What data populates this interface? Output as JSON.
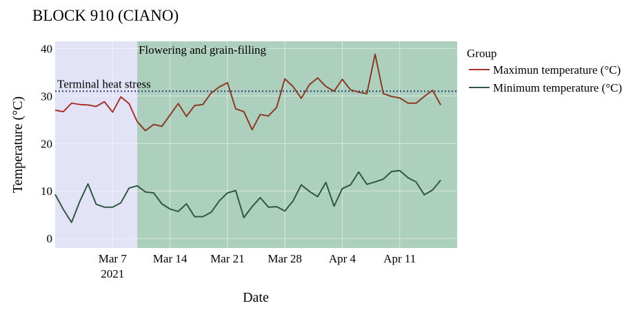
{
  "chart_data": {
    "type": "line",
    "title": "BLOCK 910 (CIANO)",
    "xlabel": "Date",
    "ylabel": "Temperature (°C)",
    "x_start": "2021-02-28",
    "xlim": [
      "2021-02-28",
      "2021-04-18"
    ],
    "ylim": [
      -2,
      41.5
    ],
    "yticks": [
      0,
      10,
      20,
      30,
      40
    ],
    "xticks": [
      {
        "date": "2021-03-07",
        "label": "Mar 7",
        "sublabel": "2021"
      },
      {
        "date": "2021-03-14",
        "label": "Mar 14",
        "sublabel": ""
      },
      {
        "date": "2021-03-21",
        "label": "Mar 21",
        "sublabel": ""
      },
      {
        "date": "2021-03-28",
        "label": "Mar 28",
        "sublabel": ""
      },
      {
        "date": "2021-04-04",
        "label": "Apr 4",
        "sublabel": ""
      },
      {
        "date": "2021-04-11",
        "label": "Apr 11",
        "sublabel": ""
      }
    ],
    "grid": true,
    "legend": {
      "title": "Group",
      "position": "right"
    },
    "regions": [
      {
        "from": "2021-02-28",
        "to": "2021-03-10",
        "color": "#e3e3f7",
        "label": ""
      },
      {
        "from": "2021-03-10",
        "to": "2021-04-18",
        "color": "#adcfbd",
        "label": "Flowering and grain-filling"
      }
    ],
    "hline": {
      "y": 31,
      "label": "Terminal heat stress",
      "color": "#2b3a67",
      "style": "dotted"
    },
    "series": [
      {
        "name": "Maximun temperature (°C)",
        "color": "#a8302a",
        "segment_colors": [
          {
            "from": "2021-03-10",
            "color": "#8a3a20"
          }
        ],
        "values": [
          27.0,
          26.7,
          28.5,
          28.2,
          28.1,
          27.8,
          28.8,
          26.6,
          29.8,
          28.4,
          24.6,
          22.7,
          24.0,
          23.6,
          26.0,
          28.4,
          25.7,
          28.0,
          28.2,
          30.6,
          31.9,
          32.8,
          27.3,
          26.7,
          22.9,
          26.1,
          25.8,
          27.6,
          33.6,
          32.0,
          29.5,
          32.4,
          33.8,
          32.0,
          31.0,
          33.5,
          31.3,
          30.8,
          30.5,
          38.8,
          30.5,
          29.9,
          29.6,
          28.5,
          28.5,
          29.9,
          31.2,
          28.1
        ]
      },
      {
        "name": "Minimum  temperature (°C)",
        "color": "#2f5740",
        "segment_colors": [],
        "values": [
          9.3,
          6.1,
          3.4,
          7.8,
          11.5,
          7.2,
          6.6,
          6.6,
          7.5,
          10.6,
          11.1,
          9.8,
          9.6,
          7.3,
          6.2,
          5.7,
          7.3,
          4.6,
          4.6,
          5.5,
          7.9,
          9.6,
          10.1,
          4.4,
          6.7,
          8.6,
          6.6,
          6.7,
          5.8,
          7.9,
          11.3,
          9.9,
          8.8,
          11.8,
          6.8,
          10.5,
          11.3,
          14.0,
          11.4,
          11.9,
          12.5,
          14.1,
          14.3,
          12.8,
          11.9,
          9.2,
          10.2,
          12.3
        ]
      }
    ]
  }
}
